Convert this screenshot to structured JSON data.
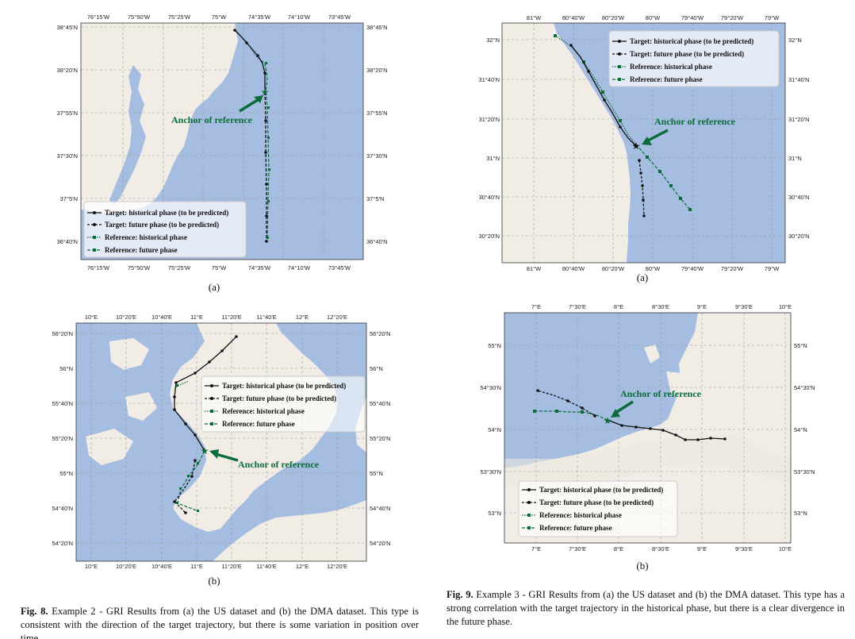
{
  "colors": {
    "water": "#a4bde0",
    "land": "#f1ede6",
    "green": "#0b6b3a",
    "target": "#111111"
  },
  "legend": {
    "hist": "Target: historical phase (to be predicted)",
    "fut": "Target: future phase (to be predicted)",
    "refh": "Reference: historical phase",
    "reff": "Reference: future phase"
  },
  "anchor_label": "Anchor of reference",
  "figures": {
    "fig8": {
      "caption_label": "Fig. 8.",
      "caption_text": "Example 2 - GRI Results from (a) the US dataset and (b) the DMA dataset. This type is consistent with the direction of the target trajectory, but there is some variation in position over time.",
      "a": {
        "label": "(a)",
        "xticks": [
          "76°15'W",
          "75°50'W",
          "75°25'W",
          "75°W",
          "74°35'W",
          "74°10'W",
          "73°45'W"
        ],
        "yticks": [
          "38°45'N",
          "38°20'N",
          "37°55'N",
          "37°30'N",
          "37°5'N",
          "36°40'N"
        ]
      },
      "b": {
        "label": "(b)",
        "xticks": [
          "10°E",
          "10°20'E",
          "10°40'E",
          "11°E",
          "11°20'E",
          "11°40'E",
          "12°E",
          "12°20'E"
        ],
        "yticks": [
          "56°20'N",
          "56°N",
          "55°40'N",
          "55°20'N",
          "55°N",
          "54°40'N",
          "54°20'N"
        ]
      }
    },
    "fig9": {
      "caption_label": "Fig. 9.",
      "caption_text": "Example 3 - GRI Results from (a) the US dataset and (b) the DMA dataset. This type has a strong correlation with the target trajectory in the historical phase, but there is a clear divergence in the future phase.",
      "a": {
        "label": "(a)",
        "xticks": [
          "81°W",
          "80°40'W",
          "80°20'W",
          "80°W",
          "79°40'W",
          "79°20'W",
          "79°W"
        ],
        "yticks": [
          "32°N",
          "31°40'N",
          "31°20'N",
          "31°N",
          "30°40'N",
          "30°20'N"
        ]
      },
      "b": {
        "label": "(b)",
        "xticks": [
          "7°E",
          "7°30'E",
          "8°E",
          "8°30'E",
          "9°E",
          "9°30'E",
          "10°E"
        ],
        "yticks": [
          "55°N",
          "54°30'N",
          "54°N",
          "53°30'N",
          "53°N"
        ]
      }
    }
  }
}
